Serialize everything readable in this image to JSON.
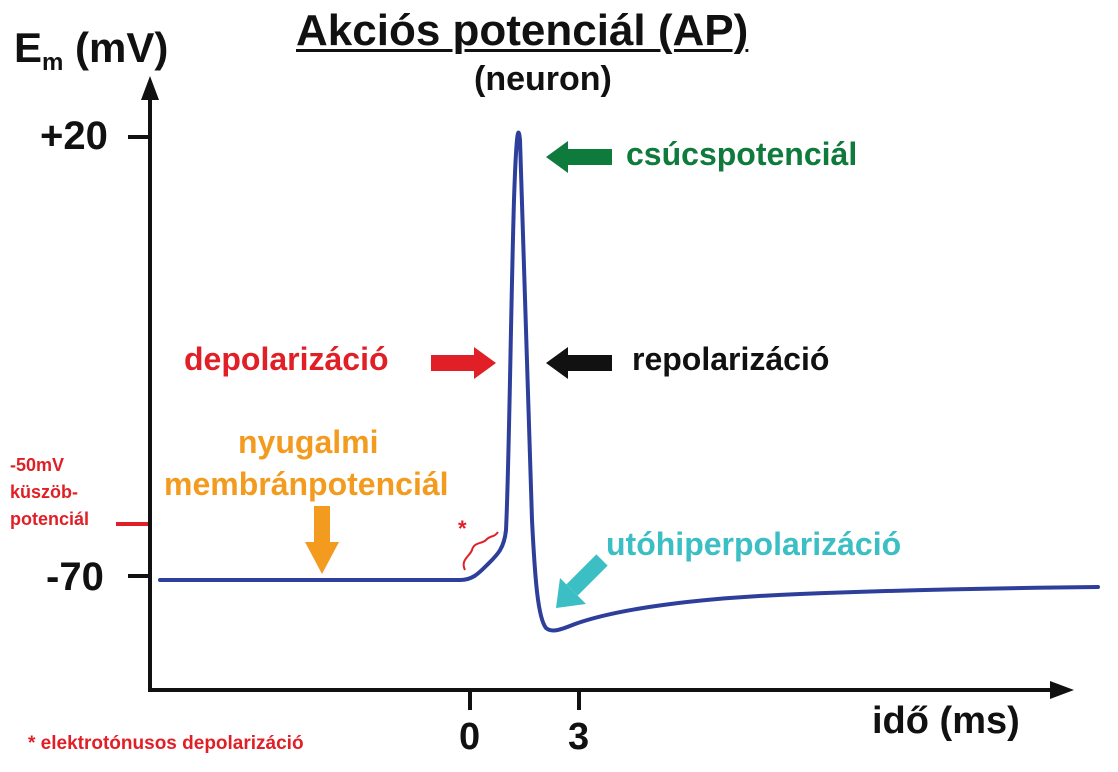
{
  "diagram": {
    "title": "Akciós potenciál (AP)",
    "subtitle": "(neuron)",
    "y_axis": {
      "symbol": "E",
      "subscript": "m",
      "unit": "(mV)"
    },
    "x_axis": {
      "label": "idő (ms)"
    },
    "y_ticks": [
      "+20",
      "-70"
    ],
    "x_ticks": [
      "0",
      "3"
    ],
    "threshold": {
      "lines": [
        "-50mV",
        "küszöb-",
        "potenciál"
      ]
    },
    "labels": {
      "peak": "csúcspotenciál",
      "depolarization": "depolarizáció",
      "repolarization": "repolarizáció",
      "resting_line1": "nyugalmi",
      "resting_line2": "membránpotenciál",
      "afterhyper": "utóhiperpolarizáció",
      "electrotonic_marker": "*"
    },
    "footnote": "* elektrotónusos depolarizáció",
    "colors": {
      "curve": "#2e3f9b",
      "peak": "#0e7a3b",
      "depolarization": "#e01f26",
      "repolarization": "#111111",
      "resting": "#f39b1f",
      "afterhyper": "#3bbfc4",
      "threshold": "#e01f26"
    }
  }
}
